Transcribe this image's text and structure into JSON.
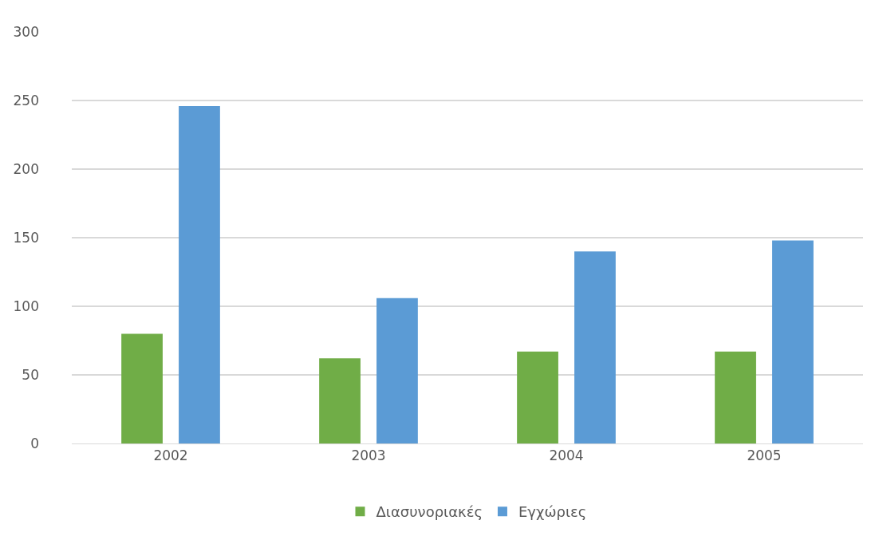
{
  "chart_data": {
    "type": "bar",
    "categories": [
      "2002",
      "2003",
      "2004",
      "2005"
    ],
    "series": [
      {
        "name": "Διασυνοριακές",
        "color": "#70ad47",
        "values": [
          80,
          62,
          67,
          67
        ]
      },
      {
        "name": "Εγχώριες",
        "color": "#5b9bd5",
        "values": [
          246,
          106,
          140,
          148
        ]
      }
    ],
    "ylim": [
      0,
      300
    ],
    "yticks": [
      0,
      50,
      100,
      150,
      200,
      250,
      300
    ],
    "grid": "y",
    "legend": "bottom"
  }
}
